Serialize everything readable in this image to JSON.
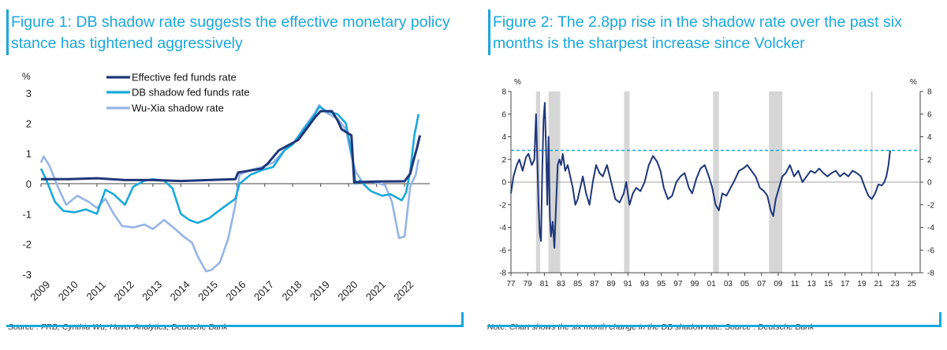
{
  "figure1": {
    "title": "Figure 1: DB shadow rate suggests the effective monetary policy stance has tightened aggressively",
    "source": "Source : FRB, Cynthia Wu, Haver Analytics, Deutsche Bank",
    "chart_data": {
      "type": "line",
      "ylabel": "%",
      "ylim": [
        -3,
        3
      ],
      "yticks": [
        "-3",
        "-2",
        "-1",
        "0",
        "1",
        "2",
        "3"
      ],
      "xlim": [
        2009,
        2022.9
      ],
      "xticks": [
        "2009",
        "2010",
        "2011",
        "2012",
        "2013",
        "2014",
        "2015",
        "2016",
        "2017",
        "2018",
        "2019",
        "2020",
        "2021",
        "2022"
      ],
      "legend_position": "top-center",
      "series": [
        {
          "name": "Effective fed funds rate",
          "color": "#1f3679",
          "x": [
            2009,
            2009.5,
            2010,
            2011,
            2012,
            2013,
            2014,
            2015,
            2015.95,
            2016.05,
            2016.9,
            2017.1,
            2017.5,
            2017.9,
            2018.2,
            2018.5,
            2018.8,
            2019.0,
            2019.4,
            2019.6,
            2019.75,
            2020.1,
            2020.2,
            2021,
            2022.0,
            2022.2,
            2022.33,
            2022.45,
            2022.55
          ],
          "y": [
            0.15,
            0.15,
            0.15,
            0.18,
            0.12,
            0.12,
            0.09,
            0.12,
            0.15,
            0.37,
            0.5,
            0.66,
            1.1,
            1.3,
            1.45,
            1.82,
            2.2,
            2.4,
            2.4,
            2.1,
            1.8,
            1.6,
            0.05,
            0.07,
            0.08,
            0.33,
            0.8,
            1.2,
            1.6
          ]
        },
        {
          "name": "DB shadow fed funds rate",
          "color": "#19a8dc",
          "x": [
            2009,
            2009.2,
            2009.5,
            2009.8,
            2010.2,
            2010.6,
            2011.0,
            2011.3,
            2011.6,
            2012.0,
            2012.3,
            2012.7,
            2013.0,
            2013.4,
            2013.7,
            2014.0,
            2014.3,
            2014.6,
            2015.0,
            2015.5,
            2015.95,
            2016.1,
            2016.5,
            2016.9,
            2017.3,
            2017.7,
            2018.0,
            2018.4,
            2018.8,
            2018.95,
            2019.2,
            2019.6,
            2019.9,
            2020.15,
            2020.25,
            2020.4,
            2020.8,
            2021.2,
            2021.5,
            2021.9,
            2022.05,
            2022.2,
            2022.35,
            2022.5
          ],
          "y": [
            0.5,
            0.1,
            -0.6,
            -0.9,
            -0.95,
            -0.85,
            -1.0,
            -0.2,
            -0.35,
            -0.7,
            -0.1,
            0.1,
            0.15,
            0.1,
            -0.15,
            -1.0,
            -1.2,
            -1.3,
            -1.15,
            -0.8,
            -0.5,
            0.0,
            0.3,
            0.45,
            0.55,
            1.1,
            1.3,
            1.8,
            2.3,
            2.55,
            2.4,
            2.3,
            2.0,
            0.8,
            0.0,
            0.1,
            -0.25,
            -0.4,
            -0.35,
            -0.55,
            -0.3,
            0.4,
            1.6,
            2.3
          ]
        },
        {
          "name": "Wu-Xia shadow rate",
          "color": "#97b4e6",
          "x": [
            2009,
            2009.1,
            2009.3,
            2009.6,
            2009.9,
            2010.3,
            2010.7,
            2011.0,
            2011.3,
            2011.6,
            2011.9,
            2012.3,
            2012.7,
            2013.0,
            2013.4,
            2013.8,
            2014.1,
            2014.4,
            2014.6,
            2014.9,
            2015.1,
            2015.4,
            2015.7,
            2015.95,
            2016.1,
            2016.5,
            2016.9,
            2017.3,
            2017.7,
            2018.0,
            2018.4,
            2018.8,
            2018.95,
            2019.2,
            2019.6,
            2019.9,
            2020.1,
            2020.25,
            2020.5,
            2020.9,
            2021.3,
            2021.55,
            2021.8,
            2022.0,
            2022.2,
            2022.4,
            2022.5
          ],
          "y": [
            0.7,
            0.9,
            0.6,
            -0.1,
            -0.7,
            -0.4,
            -0.6,
            -0.8,
            -0.5,
            -1.0,
            -1.4,
            -1.45,
            -1.35,
            -1.5,
            -1.2,
            -1.5,
            -1.75,
            -1.95,
            -2.4,
            -2.9,
            -2.85,
            -2.6,
            -1.8,
            -0.7,
            0.3,
            0.45,
            0.55,
            0.7,
            1.1,
            1.3,
            1.85,
            2.35,
            2.6,
            2.35,
            2.15,
            1.8,
            0.9,
            0.4,
            0.05,
            0.05,
            -0.05,
            -0.6,
            -1.8,
            -1.75,
            -0.1,
            0.3,
            0.8
          ]
        }
      ]
    }
  },
  "figure2": {
    "title": "Figure 2: The 2.8pp rise in the shadow rate over the past six months is the sharpest increase since Volcker",
    "note": "Note: Chart shows the six month change in the DB shadow rate. Source : Deutsche Bank",
    "chart_data": {
      "type": "line",
      "ylabel_left": "%",
      "ylabel_right": "%",
      "ylim": [
        -8,
        8
      ],
      "yticks": [
        "-8",
        "-6",
        "-4",
        "-2",
        "0",
        "2",
        "4",
        "6",
        "8"
      ],
      "xlim": [
        1977,
        2026
      ],
      "xticks": [
        "77",
        "79",
        "81",
        "83",
        "85",
        "87",
        "89",
        "91",
        "93",
        "95",
        "97",
        "99",
        "01",
        "03",
        "05",
        "07",
        "09",
        "11",
        "13",
        "15",
        "17",
        "19",
        "21",
        "23",
        "25"
      ],
      "reference_line": {
        "y": 2.8,
        "color": "#19a8dc",
        "style": "dashed"
      },
      "recessions": [
        [
          1980.0,
          1980.5
        ],
        [
          1981.5,
          1982.9
        ],
        [
          1990.55,
          1991.2
        ],
        [
          2001.2,
          2001.9
        ],
        [
          2007.9,
          2009.5
        ],
        [
          2020.1,
          2020.3
        ]
      ],
      "series": [
        {
          "name": "Six month change in DB shadow rate",
          "color": "#1f3679",
          "x": [
            1977.0,
            1977.3,
            1977.7,
            1978.0,
            1978.4,
            1978.8,
            1979.1,
            1979.5,
            1979.8,
            1980.0,
            1980.15,
            1980.3,
            1980.45,
            1980.6,
            1980.75,
            1980.9,
            1981.05,
            1981.2,
            1981.35,
            1981.5,
            1981.65,
            1981.8,
            1982.0,
            1982.2,
            1982.4,
            1982.6,
            1982.8,
            1983.0,
            1983.2,
            1983.5,
            1983.8,
            1984.1,
            1984.4,
            1984.7,
            1985.0,
            1985.3,
            1985.6,
            1986.0,
            1986.4,
            1986.8,
            1987.2,
            1987.6,
            1988.0,
            1988.5,
            1989.0,
            1989.5,
            1990.0,
            1990.5,
            1990.8,
            1991.2,
            1991.6,
            1992.0,
            1992.5,
            1993.0,
            1993.5,
            1994.0,
            1994.5,
            1994.9,
            1995.3,
            1995.8,
            1996.3,
            1996.8,
            1997.3,
            1997.8,
            1998.3,
            1998.7,
            1999.2,
            1999.7,
            2000.2,
            2000.7,
            2001.1,
            2001.5,
            2001.9,
            2002.3,
            2002.8,
            2003.3,
            2003.8,
            2004.3,
            2004.8,
            2005.3,
            2005.8,
            2006.3,
            2006.8,
            2007.3,
            2007.7,
            2008.1,
            2008.4,
            2008.7,
            2009.1,
            2009.5,
            2009.9,
            2010.4,
            2010.9,
            2011.4,
            2011.9,
            2012.4,
            2012.9,
            2013.4,
            2013.9,
            2014.4,
            2014.9,
            2015.4,
            2015.9,
            2016.4,
            2016.9,
            2017.4,
            2017.9,
            2018.4,
            2018.9,
            2019.4,
            2019.8,
            2020.2,
            2020.6,
            2021.0,
            2021.4,
            2021.7,
            2021.95,
            2022.2,
            2022.4
          ],
          "y": [
            -1.0,
            0.5,
            1.5,
            2.0,
            1.0,
            2.2,
            2.5,
            1.5,
            2.0,
            6.0,
            2.0,
            -2.0,
            -4.5,
            -5.2,
            1.0,
            5.5,
            7.0,
            3.0,
            -2.0,
            4.0,
            -3.0,
            -4.8,
            -3.5,
            -5.8,
            -2.0,
            1.5,
            2.0,
            1.5,
            2.5,
            1.0,
            1.5,
            0.5,
            -0.5,
            -2.0,
            -1.5,
            -0.5,
            0.5,
            -1.0,
            -2.0,
            0.0,
            1.5,
            0.8,
            0.5,
            1.5,
            0.0,
            -1.5,
            -1.8,
            -1.0,
            0.0,
            -2.0,
            -1.0,
            -0.5,
            -0.8,
            0.0,
            1.5,
            2.3,
            1.8,
            1.0,
            -0.5,
            -1.5,
            -1.2,
            0.0,
            0.5,
            0.8,
            -0.5,
            -1.0,
            0.3,
            1.2,
            1.5,
            0.5,
            -0.5,
            -2.0,
            -2.5,
            -1.0,
            -1.2,
            -0.5,
            0.2,
            1.0,
            1.2,
            1.5,
            1.0,
            0.5,
            -0.5,
            -0.8,
            -1.2,
            -2.5,
            -3.0,
            -1.5,
            -0.5,
            0.5,
            0.8,
            1.5,
            0.5,
            1.0,
            0.0,
            0.5,
            1.0,
            0.8,
            1.2,
            0.8,
            0.5,
            0.8,
            1.0,
            0.5,
            0.8,
            0.5,
            1.0,
            0.8,
            0.5,
            -0.5,
            -1.2,
            -1.5,
            -1.0,
            -0.2,
            -0.3,
            0.0,
            0.5,
            1.5,
            2.8
          ]
        }
      ]
    }
  }
}
